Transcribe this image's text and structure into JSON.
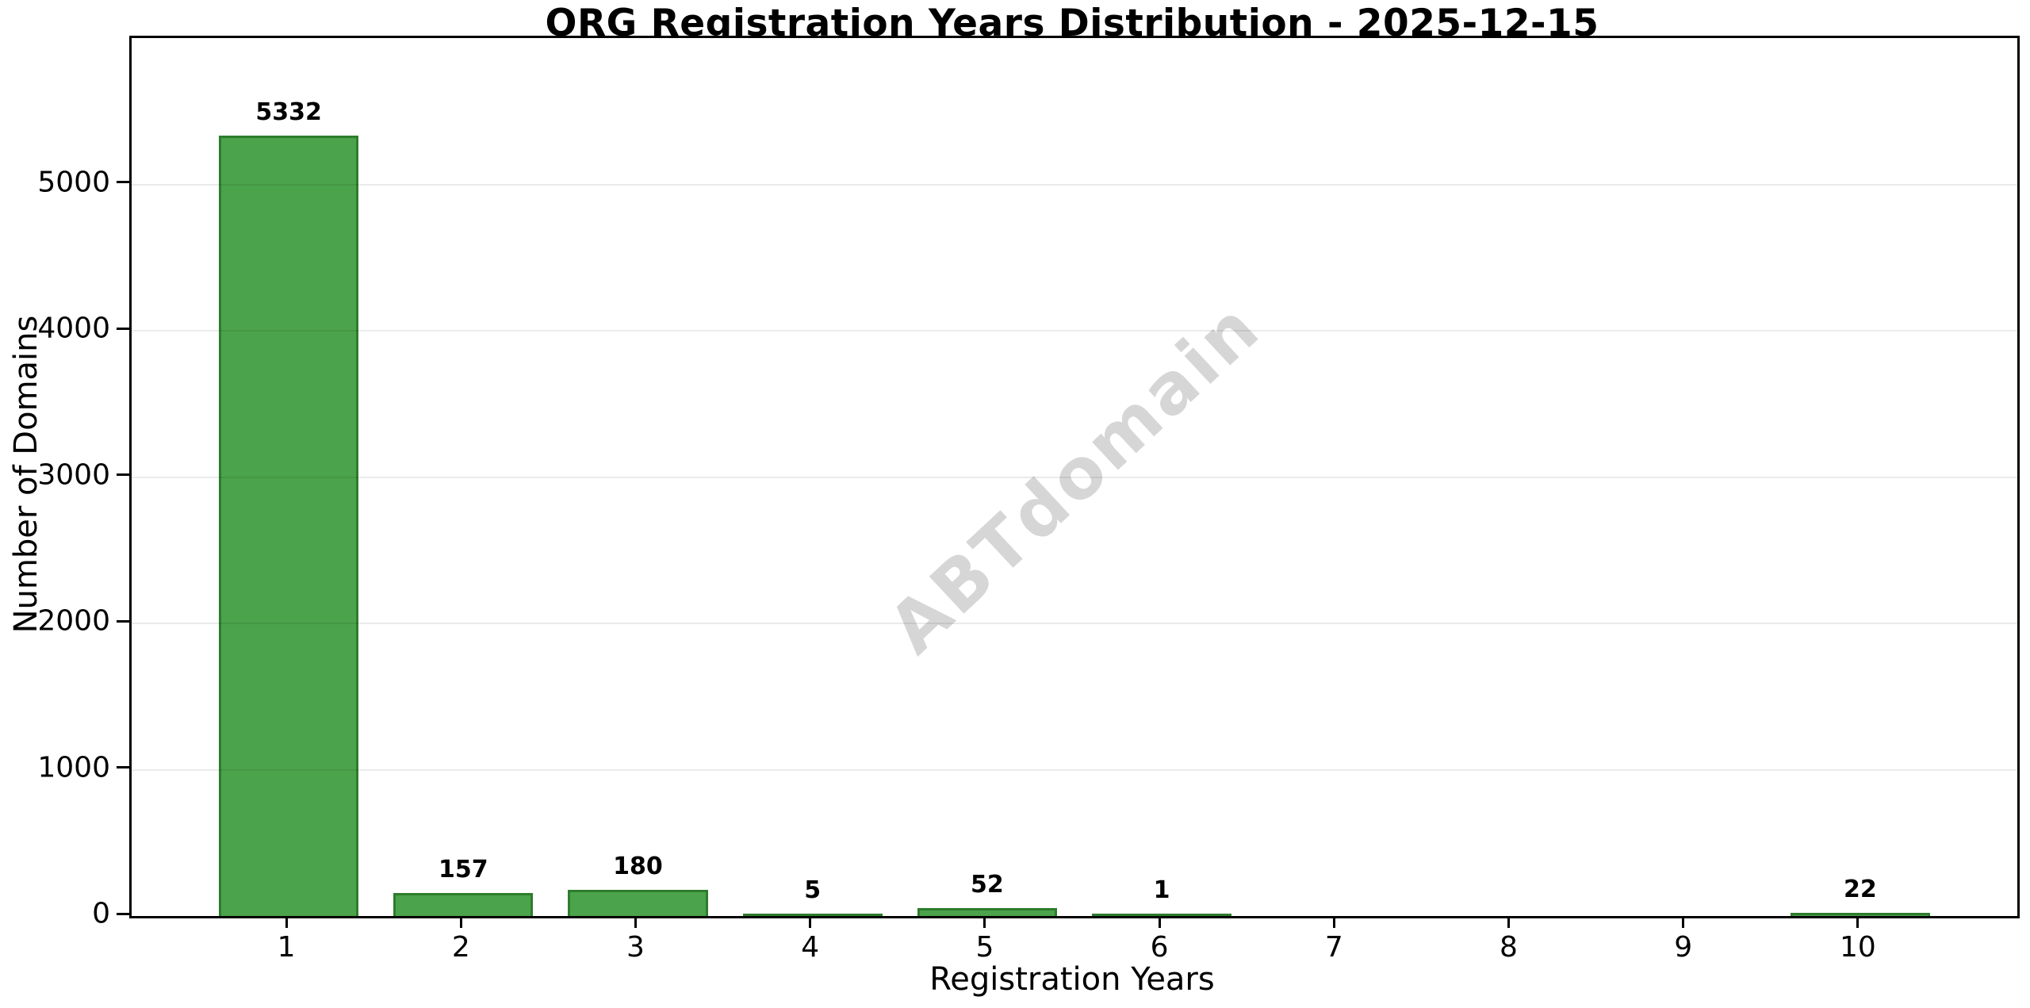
{
  "figure": {
    "title": "ORG Registration Years Distribution - 2025-12-15",
    "watermark": "ABTdomain"
  },
  "chart_data": {
    "type": "bar",
    "title": "ORG Registration Years Distribution - 2025-12-15",
    "xlabel": "Registration Years",
    "ylabel": "Number of Domains",
    "categories": [
      "1",
      "2",
      "3",
      "4",
      "5",
      "6",
      "7",
      "8",
      "9",
      "10"
    ],
    "values": [
      5332,
      157,
      180,
      5,
      52,
      1,
      0,
      0,
      0,
      22
    ],
    "bar_labels": [
      "5332",
      "157",
      "180",
      "5",
      "52",
      "1",
      "",
      "",
      "",
      "22"
    ],
    "yticks": [
      0,
      1000,
      2000,
      3000,
      4000,
      5000
    ],
    "ylim": [
      0,
      6000
    ],
    "grid": "horizontal-light",
    "legend": "none",
    "bar_color": "#4ba34b",
    "bar_edge_color": "#2d7d2d",
    "watermark_text": "ABTdomain"
  }
}
